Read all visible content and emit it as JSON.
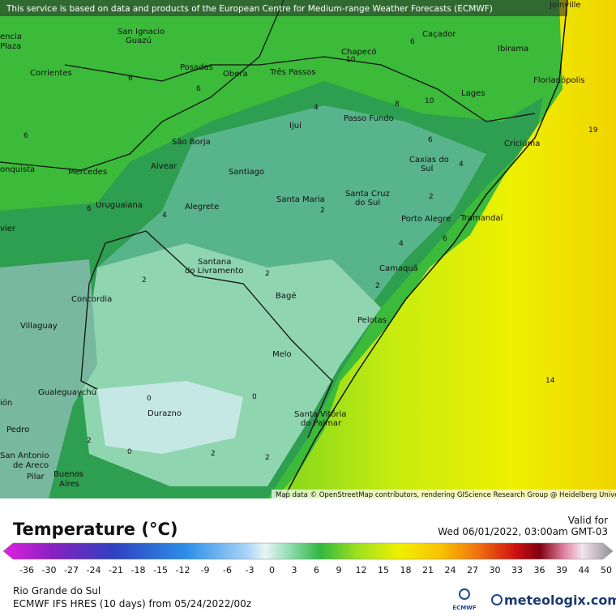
{
  "banner": "This service is based on data and products of the European Centre for Medium-range Weather Forecasts (ECMWF)",
  "map": {
    "places": [
      "encia",
      "Plaza",
      "San Ignacio",
      "Guazú",
      "Posadas",
      "Corrientes",
      "Obera",
      "Três Passos",
      "Chapecó",
      "Caçador",
      "Ibirama",
      "Joinville",
      "Florianópolis",
      "Lages",
      "Ijuí",
      "Passo Fundo",
      "São Borja",
      "Criciúma",
      "onquista",
      "Mercedes",
      "Alvear",
      "Santiago",
      "Caxias do",
      "Sul",
      "Santa Maria",
      "Santa Cruz",
      "do Sul",
      "Uruguaiana",
      "Alegrete",
      "Porto Alegre",
      "Tramandaí",
      "vier",
      "Santana",
      "do Livramento",
      "Camaquã",
      "Concordia",
      "Bagé",
      "Pelotas",
      "Villaguay",
      "Melo",
      "ión",
      "Gualeguaychú",
      "Durazno",
      "Santa Vitória",
      "do Palmar",
      "Pedro",
      "San Antonio",
      "de Areco",
      "Pilar",
      "Buenos",
      "Aires"
    ],
    "contour_labels": [
      19,
      14,
      6,
      6,
      6,
      6,
      6,
      6,
      6,
      8,
      10,
      10,
      4,
      4,
      4,
      4,
      2,
      2,
      2,
      2,
      2,
      2,
      2,
      2,
      0,
      0,
      0
    ],
    "attribution": "Map data © OpenStreetMap contributors, rendering GIScience Research Group @ Heidelberg University"
  },
  "legend": {
    "title": "Temperature (°C)",
    "valid_label": "Valid for",
    "valid_time": "Wed 06/01/2022, 03:00am GMT-03",
    "ticks": [
      -36,
      -30,
      -27,
      -24,
      -21,
      -18,
      -15,
      -12,
      -9,
      -6,
      -3,
      0,
      3,
      6,
      9,
      12,
      15,
      18,
      21,
      24,
      27,
      30,
      33,
      36,
      39,
      44,
      50
    ]
  },
  "footer": {
    "region": "Rio Grande do Sul",
    "model": "ECMWF IFS HRES (10 days) from 05/24/2022/00z",
    "ecmwf_logo": "ECMWF",
    "brand": "meteologix.com"
  }
}
